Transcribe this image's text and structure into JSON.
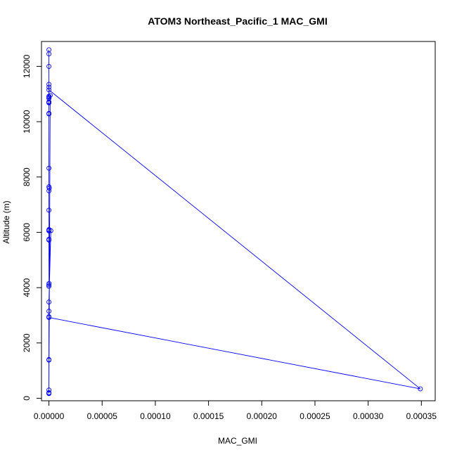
{
  "chart_data": {
    "type": "line",
    "title": "ATOM3 Northeast_Pacific_1 MAC_GMI",
    "xlabel": "MAC_GMI",
    "ylabel": "Altitude (m)",
    "xlim": [
      -7e-06,
      0.000363
    ],
    "ylim": [
      -90,
      12900
    ],
    "x_ticks": [
      0,
      5e-05,
      0.0001,
      0.00015,
      0.0002,
      0.00025,
      0.0003,
      0.00035
    ],
    "x_tick_labels": [
      "0.00000",
      "0.00005",
      "0.00010",
      "0.00015",
      "0.00020",
      "0.00025",
      "0.00030",
      "0.00035"
    ],
    "y_ticks": [
      0,
      2000,
      4000,
      6000,
      8000,
      10000,
      12000
    ],
    "y_tick_labels": [
      "0",
      "2000",
      "4000",
      "6000",
      "8000",
      "10000",
      "12000"
    ],
    "series_color": "#0000ff",
    "series": [
      {
        "x": [
          0,
          0,
          0,
          0,
          0,
          0,
          0,
          0,
          0,
          0,
          0,
          0,
          3e-07,
          0,
          0,
          1e-07,
          0,
          0,
          0,
          0,
          1e-07,
          0,
          0,
          1.8e-06,
          0,
          0,
          0,
          0,
          0,
          0,
          0,
          0,
          1.2e-06,
          0,
          0,
          0,
          0,
          0,
          0.000349,
          0,
          0,
          0,
          0
        ],
        "y": [
          12600,
          12450,
          12000,
          11350,
          11250,
          10920,
          10850,
          10700,
          10300,
          10280,
          8320,
          7650,
          7600,
          7500,
          6800,
          6100,
          6080,
          6050,
          5750,
          5720,
          4150,
          4100,
          4050,
          6060,
          3480,
          3150,
          2950,
          1400,
          1380,
          300,
          200,
          180,
          10950,
          10900,
          10850,
          10720,
          10680,
          11150,
          340,
          2920,
          200,
          180,
          170
        ]
      }
    ]
  }
}
